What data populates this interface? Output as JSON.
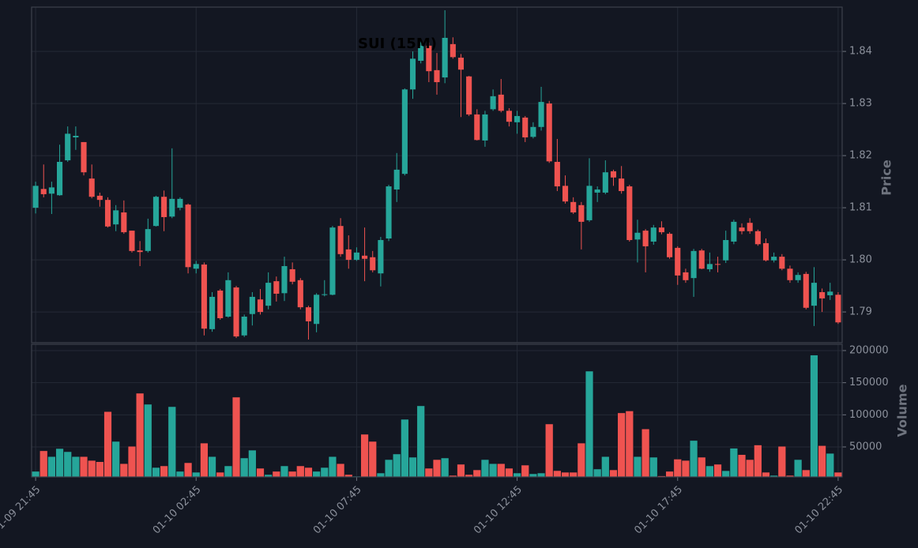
{
  "chart_data": {
    "type": "candlestick",
    "title": "SUI (15M)",
    "ylabel": "Price",
    "volume_label": "Volume",
    "x": [
      "01-09 21:45",
      "01-09 22:00",
      "01-09 22:15",
      "01-09 22:30",
      "01-09 22:45",
      "01-09 23:00",
      "01-09 23:15",
      "01-09 23:30",
      "01-09 23:45",
      "01-10 00:00",
      "01-10 00:15",
      "01-10 00:30",
      "01-10 00:45",
      "01-10 01:00",
      "01-10 01:15",
      "01-10 01:30",
      "01-10 01:45",
      "01-10 02:00",
      "01-10 02:15",
      "01-10 02:30",
      "01-10 02:45",
      "01-10 03:00",
      "01-10 03:15",
      "01-10 03:30",
      "01-10 03:45",
      "01-10 04:00",
      "01-10 04:15",
      "01-10 04:30",
      "01-10 04:45",
      "01-10 05:00",
      "01-10 05:15",
      "01-10 05:30",
      "01-10 05:45",
      "01-10 06:00",
      "01-10 06:15",
      "01-10 06:30",
      "01-10 06:45",
      "01-10 07:00",
      "01-10 07:15",
      "01-10 07:30",
      "01-10 07:45",
      "01-10 08:00",
      "01-10 08:15",
      "01-10 08:30",
      "01-10 08:45",
      "01-10 09:00",
      "01-10 09:15",
      "01-10 09:30",
      "01-10 09:45",
      "01-10 10:00",
      "01-10 10:15",
      "01-10 10:30",
      "01-10 10:45",
      "01-10 11:00",
      "01-10 11:15",
      "01-10 11:30",
      "01-10 11:45",
      "01-10 12:00",
      "01-10 12:15",
      "01-10 12:30",
      "01-10 12:45",
      "01-10 13:00",
      "01-10 13:15",
      "01-10 13:30",
      "01-10 13:45",
      "01-10 14:00",
      "01-10 14:15",
      "01-10 14:30",
      "01-10 14:45",
      "01-10 15:00",
      "01-10 15:15",
      "01-10 15:30",
      "01-10 15:45",
      "01-10 16:00",
      "01-10 16:15",
      "01-10 16:30",
      "01-10 16:45",
      "01-10 17:00",
      "01-10 17:15",
      "01-10 17:30",
      "01-10 17:45",
      "01-10 18:00",
      "01-10 18:15",
      "01-10 18:30",
      "01-10 18:45",
      "01-10 19:00",
      "01-10 19:15",
      "01-10 19:30",
      "01-10 19:45",
      "01-10 20:00",
      "01-10 20:15",
      "01-10 20:30",
      "01-10 20:45",
      "01-10 21:00",
      "01-10 21:15",
      "01-10 21:30",
      "01-10 21:45",
      "01-10 22:00",
      "01-10 22:15",
      "01-10 22:30",
      "01-10 22:45"
    ],
    "open": [
      1.81,
      1.8136,
      1.8127,
      1.8124,
      1.8191,
      1.8235,
      1.8226,
      1.8156,
      1.8123,
      1.8115,
      1.8068,
      1.8091,
      1.8056,
      1.8018,
      1.8017,
      1.8065,
      1.8121,
      1.8083,
      1.81,
      1.8106,
      1.7983,
      1.7991,
      1.7867,
      1.7941,
      1.7891,
      1.7947,
      1.7855,
      1.7896,
      1.7924,
      1.7912,
      1.7959,
      1.7936,
      1.7982,
      1.7961,
      1.7909,
      1.7877,
      1.7933,
      1.7933,
      1.8065,
      1.802,
      1.8,
      1.8008,
      1.8005,
      1.7974,
      1.8041,
      1.8135,
      1.8165,
      1.8327,
      1.8382,
      1.8411,
      1.8364,
      1.835,
      1.8414,
      1.8388,
      1.8352,
      1.8279,
      1.8229,
      1.8289,
      1.8317,
      1.8286,
      1.8264,
      1.8273,
      1.8236,
      1.8255,
      1.83,
      1.8188,
      1.8142,
      1.8111,
      1.8105,
      1.8076,
      1.8129,
      1.8129,
      1.817,
      1.8156,
      1.8141,
      1.8039,
      1.8056,
      1.8035,
      1.8062,
      1.805,
      1.8023,
      1.7976,
      1.7965,
      1.8018,
      1.7982,
      1.7992,
      1.7999,
      1.8035,
      1.8062,
      1.8071,
      1.8055,
      1.8032,
      1.7999,
      1.8006,
      1.7983,
      1.7961,
      1.7973,
      1.7912,
      1.7938,
      1.7932,
      1.7933
    ],
    "high": [
      1.815,
      1.8183,
      1.815,
      1.8221,
      1.8256,
      1.8256,
      1.8226,
      1.8183,
      1.8129,
      1.812,
      1.8105,
      1.8114,
      1.8056,
      1.8036,
      1.8079,
      1.8123,
      1.8133,
      1.8214,
      1.812,
      1.8108,
      1.7998,
      1.7995,
      1.7938,
      1.7944,
      1.7976,
      1.795,
      1.7895,
      1.7938,
      1.7944,
      1.7976,
      1.7968,
      1.8006,
      1.7995,
      1.7965,
      1.7912,
      1.7936,
      1.7961,
      1.8065,
      1.808,
      1.8047,
      1.8024,
      1.8062,
      1.8017,
      1.8044,
      1.8144,
      1.8205,
      1.8329,
      1.84,
      1.8423,
      1.8417,
      1.8397,
      1.8479,
      1.8427,
      1.8395,
      1.8353,
      1.8289,
      1.8286,
      1.8327,
      1.8347,
      1.8291,
      1.8286,
      1.8276,
      1.8264,
      1.8332,
      1.8305,
      1.8232,
      1.8162,
      1.812,
      1.8111,
      1.8195,
      1.8141,
      1.8191,
      1.8173,
      1.818,
      1.8144,
      1.8077,
      1.8059,
      1.8067,
      1.8074,
      1.8053,
      1.8026,
      1.7983,
      1.8021,
      1.8021,
      1.8014,
      1.8006,
      1.8056,
      1.8077,
      1.807,
      1.808,
      1.8058,
      1.8041,
      1.8014,
      1.8011,
      1.7989,
      1.7976,
      1.7977,
      1.7986,
      1.7945,
      1.7956,
      1.7938
    ],
    "low": [
      1.8089,
      1.812,
      1.8088,
      1.8123,
      1.8188,
      1.8211,
      1.8162,
      1.8118,
      1.8102,
      1.8062,
      1.8055,
      1.805,
      1.8014,
      1.7988,
      1.8014,
      1.8064,
      1.8055,
      1.808,
      1.8095,
      1.7974,
      1.7974,
      1.7855,
      1.7862,
      1.7885,
      1.7889,
      1.785,
      1.7852,
      1.7874,
      1.7895,
      1.7905,
      1.792,
      1.7921,
      1.7953,
      1.7905,
      1.7847,
      1.7861,
      1.793,
      1.7932,
      1.8006,
      1.7983,
      1.7998,
      1.7959,
      1.7976,
      1.7949,
      1.8036,
      1.8111,
      1.8162,
      1.8309,
      1.8377,
      1.8341,
      1.8317,
      1.8339,
      1.8386,
      1.8274,
      1.8276,
      1.8229,
      1.8217,
      1.8286,
      1.8283,
      1.8256,
      1.8242,
      1.8226,
      1.8233,
      1.8248,
      1.8186,
      1.8132,
      1.8108,
      1.8088,
      1.802,
      1.8073,
      1.8111,
      1.8126,
      1.8142,
      1.8127,
      1.8035,
      1.7995,
      1.7976,
      1.8029,
      1.8049,
      1.8002,
      1.7952,
      1.7956,
      1.7929,
      1.7982,
      1.7977,
      1.7976,
      1.7994,
      1.803,
      1.8049,
      1.805,
      1.8027,
      1.7997,
      1.7995,
      1.798,
      1.7956,
      1.7956,
      1.7905,
      1.7873,
      1.79,
      1.7923,
      1.7877
    ],
    "close": [
      1.8142,
      1.8126,
      1.8139,
      1.8188,
      1.8242,
      1.8238,
      1.8168,
      1.8121,
      1.8115,
      1.8064,
      1.8095,
      1.8053,
      1.8017,
      1.8015,
      1.8059,
      1.8121,
      1.8082,
      1.8117,
      1.8117,
      1.7986,
      1.7992,
      1.7868,
      1.7929,
      1.7888,
      1.7961,
      1.7853,
      1.7891,
      1.7929,
      1.79,
      1.7956,
      1.7935,
      1.7988,
      1.7958,
      1.7909,
      1.7882,
      1.7933,
      1.7934,
      1.8062,
      1.8011,
      1.8,
      1.8014,
      1.8002,
      1.798,
      1.8038,
      1.8141,
      1.8173,
      1.8327,
      1.8386,
      1.8411,
      1.8362,
      1.8341,
      1.8426,
      1.8389,
      1.8365,
      1.8279,
      1.823,
      1.8279,
      1.8314,
      1.8286,
      1.8265,
      1.8276,
      1.8235,
      1.8255,
      1.8303,
      1.8189,
      1.8141,
      1.8112,
      1.8091,
      1.8073,
      1.8142,
      1.8135,
      1.8168,
      1.8158,
      1.8132,
      1.8038,
      1.8052,
      1.8026,
      1.8062,
      1.8053,
      1.8005,
      1.797,
      1.7961,
      1.8017,
      1.7983,
      1.7992,
      1.7991,
      1.8038,
      1.8073,
      1.8055,
      1.8055,
      1.803,
      1.7999,
      1.8006,
      1.7983,
      1.7961,
      1.7971,
      1.7908,
      1.7956,
      1.7926,
      1.7939,
      1.788
    ],
    "volume": [
      12000,
      44000,
      35000,
      47500,
      42600,
      35000,
      35000,
      29000,
      27000,
      105000,
      58600,
      24000,
      51000,
      133600,
      116400,
      18000,
      20500,
      112700,
      12000,
      25400,
      10600,
      56000,
      35000,
      10600,
      20500,
      127500,
      32800,
      45000,
      16800,
      7000,
      12000,
      20500,
      12000,
      20500,
      18000,
      12000,
      18000,
      35000,
      24000,
      7000,
      4500,
      69700,
      58600,
      9400,
      30300,
      39000,
      93000,
      34000,
      114000,
      16800,
      30300,
      32800,
      5700,
      23000,
      7000,
      14300,
      30300,
      24000,
      24000,
      16800,
      9400,
      21700,
      8200,
      9400,
      85700,
      13100,
      10600,
      10600,
      56000,
      168000,
      15600,
      35000,
      14300,
      103000,
      106000,
      35000,
      78000,
      34000,
      5000,
      12000,
      31000,
      29000,
      60000,
      34000,
      20500,
      23000,
      13000,
      48000,
      38000,
      30300,
      53000,
      10600,
      5700,
      51000,
      5700,
      30300,
      14300,
      193000,
      52000,
      40000,
      10600
    ],
    "up_color": "#26a69a",
    "down_color": "#ef5350",
    "xlim": [
      -0.5,
      100.5
    ],
    "xticks": [
      {
        "value": 0,
        "label": "01-09 21:45"
      },
      {
        "value": 20,
        "label": "01-10 02:45"
      },
      {
        "value": 40,
        "label": "01-10 07:45"
      },
      {
        "value": 60,
        "label": "01-10 12:45"
      },
      {
        "value": 80,
        "label": "01-10 17:45"
      },
      {
        "value": 100,
        "label": "01-10 22:45"
      }
    ],
    "ylim": [
      1.7841,
      1.8485
    ],
    "yticks": [
      1.79,
      {
        "value": 1.8,
        "label": "1.80"
      },
      1.81,
      1.82,
      1.83,
      1.84
    ],
    "volume_ylim": [
      3300,
      209800
    ],
    "volume_yticks": [
      50000,
      100000,
      150000,
      200000
    ],
    "grid": true
  }
}
